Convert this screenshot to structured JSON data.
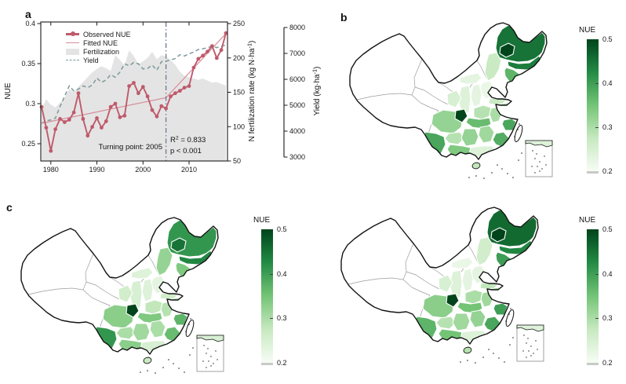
{
  "figure": {
    "panel_labels": {
      "a": "a",
      "b": "b",
      "c": "c"
    },
    "background": "#ffffff"
  },
  "chart_data": {
    "type": "line+area",
    "title": "",
    "x": [
      1978,
      1979,
      1980,
      1981,
      1982,
      1983,
      1984,
      1985,
      1986,
      1987,
      1988,
      1989,
      1990,
      1991,
      1992,
      1993,
      1994,
      1995,
      1996,
      1997,
      1998,
      1999,
      2000,
      2001,
      2002,
      2003,
      2004,
      2005,
      2006,
      2007,
      2008,
      2009,
      2010,
      2011,
      2012,
      2013,
      2014,
      2015,
      2016,
      2017,
      2018
    ],
    "series": [
      {
        "role": "observed",
        "name": "Observed NUE",
        "type": "line+markers",
        "axis": "nue",
        "color": "#bf5a6b",
        "values": [
          0.296,
          0.27,
          0.241,
          0.268,
          0.281,
          0.277,
          0.28,
          0.289,
          0.313,
          0.281,
          0.26,
          0.271,
          0.282,
          0.27,
          0.278,
          0.296,
          0.3,
          0.283,
          0.285,
          0.322,
          0.326,
          0.313,
          0.321,
          0.309,
          0.292,
          0.284,
          0.297,
          0.294,
          0.309,
          0.313,
          0.316,
          0.32,
          0.322,
          0.345,
          0.356,
          0.36,
          0.365,
          0.372,
          0.357,
          0.367,
          0.388
        ]
      },
      {
        "role": "fitted",
        "name": "Fitted NUE",
        "type": "line",
        "axis": "nue",
        "color": "#d78e9a",
        "points": [
          [
            1978,
            0.2755
          ],
          [
            2005,
            0.3075
          ],
          [
            2018,
            0.3875
          ]
        ]
      },
      {
        "role": "fertilization",
        "name": "Fertilization",
        "type": "area",
        "axis": "fert",
        "color": "#e4e4e4",
        "values": [
          126,
          140,
          132,
          128,
          135,
          142,
          155,
          150,
          158,
          165,
          172,
          179,
          184,
          188,
          185,
          181,
          204,
          197,
          189,
          211,
          203,
          191,
          195,
          200,
          209,
          198,
          204,
          202,
          197,
          190,
          180,
          174,
          172,
          170,
          168,
          170,
          167,
          164,
          165,
          162,
          160
        ]
      },
      {
        "role": "yield",
        "name": "Yield",
        "type": "dashed-line",
        "axis": "yield",
        "color": "#7e999c",
        "values": [
          4300,
          4400,
          4430,
          4500,
          4950,
          5350,
          5750,
          5550,
          5620,
          5750,
          5680,
          5780,
          6050,
          5880,
          5980,
          6180,
          6080,
          6280,
          6600,
          6520,
          6650,
          6600,
          6400,
          6420,
          6550,
          6350,
          6680,
          6700,
          6750,
          6800,
          6950,
          6900,
          6980,
          7050,
          7150,
          7180,
          7220,
          7280,
          7220,
          7280,
          7320
        ]
      }
    ],
    "axes": {
      "x": {
        "range": [
          1978,
          2018
        ],
        "ticks": [
          "1980",
          "1990",
          "2000",
          "2010"
        ]
      },
      "nue": {
        "label": "NUE",
        "range": [
          0.228,
          0.402
        ],
        "ticks": [
          "0.4",
          "0.35",
          "0.3",
          "0.25"
        ]
      },
      "fert": {
        "label": "N fertilization rate (kg N·ha⁻¹)",
        "range": [
          50,
          250
        ],
        "ticks": [
          "250",
          "200",
          "150",
          "100",
          "50"
        ]
      },
      "yield": {
        "label": "Yield (kg·ha⁻¹)",
        "range": [
          3000,
          8000
        ],
        "ticks": [
          "8000",
          "7000",
          "6000",
          "5000",
          "4000",
          "3000"
        ]
      }
    },
    "annotations": {
      "turning_point": "Turning point: 2005",
      "turning_year": 2005,
      "r2": "R² = 0.833",
      "p": "p < 0.001",
      "line_color": "#6b7894"
    },
    "legend_position": "top-left",
    "grid": false
  },
  "maps": {
    "colorbar": {
      "title": "NUE",
      "min": 0.2,
      "max": 0.5,
      "ticks": [
        "0.5",
        "0.4",
        "0.3",
        "0.2"
      ],
      "gradient": [
        "#f7fcf5",
        "#c7e9c0",
        "#74c476",
        "#238b45",
        "#00441b"
      ]
    },
    "panels": [
      {
        "id": "b",
        "regions": {
          "heilongjiang": 0.45,
          "heilongjiang_west": 0.5,
          "jilin": 0.44,
          "liaoning": 0.37,
          "innermongolia_e": 0.27,
          "innermongolia_s": 0.23,
          "hebei": 0.22,
          "shanxi": 0.23,
          "shandong": 0.27,
          "henan": 0.29,
          "shaanxi": 0.24,
          "gansu_se": 0.25,
          "hubei": 0.36,
          "anhui": 0.3,
          "jiangsu": 0.31,
          "shanghai": 0.33,
          "zhejiang": 0.39,
          "sichuan": 0.32,
          "chongqing": 0.5,
          "guizhou": 0.29,
          "hunan": 0.32,
          "jiangxi": 0.31,
          "fujian": 0.38,
          "yunnan": 0.39,
          "guangxi": 0.34,
          "guangdong": 0.24,
          "hainan": 0.28
        }
      },
      {
        "id": "c-left",
        "regions": {
          "heilongjiang": 0.41,
          "heilongjiang_west": 0.45,
          "jilin": 0.43,
          "liaoning": 0.34,
          "innermongolia_e": 0.32,
          "innermongolia_s": 0.24,
          "hebei": 0.23,
          "shanxi": 0.24,
          "shandong": 0.26,
          "henan": 0.28,
          "shaanxi": 0.25,
          "gansu_se": 0.26,
          "hubei": 0.34,
          "anhui": 0.29,
          "jiangsu": 0.3,
          "shanghai": 0.32,
          "zhejiang": 0.37,
          "sichuan": 0.33,
          "chongqing": 0.5,
          "guizhou": 0.3,
          "hunan": 0.31,
          "jiangxi": 0.3,
          "fujian": 0.36,
          "yunnan": 0.41,
          "guangxi": 0.33,
          "guangdong": 0.25,
          "hainan": 0.27
        }
      },
      {
        "id": "c-right",
        "regions": {
          "heilongjiang": 0.46,
          "heilongjiang_west": 0.5,
          "jilin": 0.43,
          "liaoning": 0.4,
          "innermongolia_e": 0.26,
          "innermongolia_s": 0.22,
          "hebei": 0.23,
          "shanxi": 0.23,
          "shandong": 0.28,
          "henan": 0.3,
          "shaanxi": 0.24,
          "gansu_se": 0.25,
          "hubei": 0.35,
          "anhui": 0.31,
          "jiangsu": 0.32,
          "shanghai": 0.34,
          "zhejiang": 0.4,
          "sichuan": 0.33,
          "chongqing": 0.5,
          "guizhou": 0.29,
          "hunan": 0.31,
          "jiangxi": 0.32,
          "fujian": 0.39,
          "yunnan": 0.37,
          "guangxi": 0.35,
          "guangdong": 0.24,
          "hainan": 0.29
        }
      }
    ]
  }
}
